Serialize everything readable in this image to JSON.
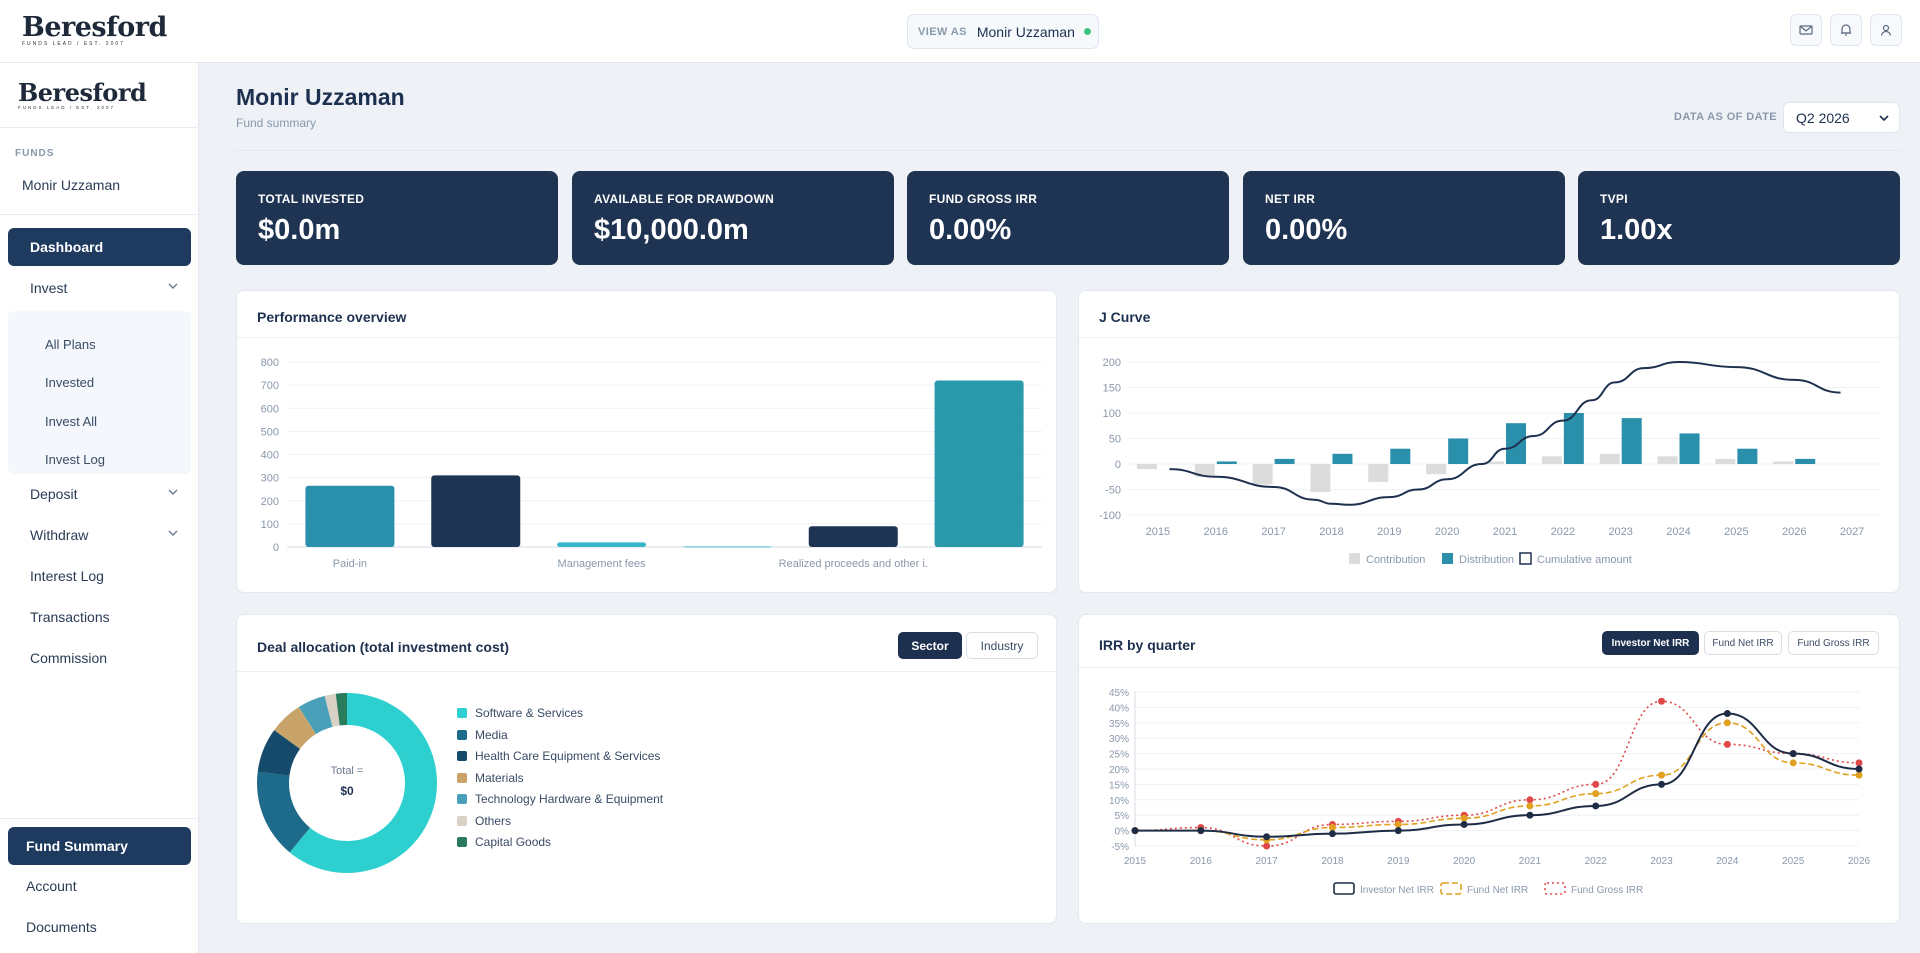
{
  "brand": {
    "name": "Beresford",
    "tagline": "FUNDS LEAD / EST. 2007"
  },
  "view_as": {
    "label": "VIEW AS",
    "value": "Monir Uzzaman"
  },
  "top_icons": [
    "mail-icon",
    "bell-icon",
    "user-icon"
  ],
  "sidebar": {
    "funds_label": "FUNDS",
    "fund_name": "Monir Uzzaman",
    "items": [
      {
        "label": "Dashboard"
      },
      {
        "label": "Invest"
      },
      {
        "label": "Deposit"
      },
      {
        "label": "Withdraw"
      },
      {
        "label": "Interest Log"
      },
      {
        "label": "Transactions"
      },
      {
        "label": "Commission"
      }
    ],
    "invest_sub": [
      {
        "label": "All Plans"
      },
      {
        "label": "Invested"
      },
      {
        "label": "Invest All"
      },
      {
        "label": "Invest Log"
      }
    ],
    "bottom": [
      {
        "label": "Fund Summary"
      },
      {
        "label": "Account"
      },
      {
        "label": "Documents"
      }
    ]
  },
  "page": {
    "title": "Monir Uzzaman",
    "subtitle": "Fund summary",
    "as_of_label": "DATA AS OF DATE",
    "as_of_value": "Q2 2026"
  },
  "kpis": [
    {
      "label": "TOTAL INVESTED",
      "value": "$0.0m"
    },
    {
      "label": "AVAILABLE FOR DRAWDOWN",
      "value": "$10,000.0m"
    },
    {
      "label": "FUND GROSS IRR",
      "value": "0.00%"
    },
    {
      "label": "NET IRR",
      "value": "0.00%"
    },
    {
      "label": "TVPI",
      "value": "1.00x"
    }
  ],
  "cards": {
    "performance": {
      "title": "Performance overview"
    },
    "jcurve": {
      "title": "J Curve"
    },
    "allocation": {
      "title": "Deal allocation (total investment cost)",
      "toggle_sector": "Sector",
      "toggle_industry": "Industry",
      "center_label": "Total =",
      "center_value": "$0"
    },
    "irr": {
      "title": "IRR by quarter",
      "toggles": [
        "Investor Net IRR",
        "Fund Net IRR",
        "Fund Gross IRR"
      ]
    }
  },
  "chart_data": [
    {
      "type": "bar",
      "title": "Performance overview",
      "categories": [
        "Paid-in",
        "",
        "Management fees",
        "",
        "Realized proceeds and other i.",
        ""
      ],
      "values": [
        265,
        310,
        20,
        5,
        90,
        720
      ],
      "colors": [
        "#2a8fab",
        "#1f3453",
        "#37b5c9",
        "#9fd8e3",
        "#1f3453",
        "#2a9aab"
      ],
      "yticks": [
        0,
        100,
        200,
        300,
        400,
        500,
        600,
        700,
        800
      ],
      "ylim": [
        0,
        800
      ]
    },
    {
      "type": "bar",
      "title": "J Curve",
      "categories": [
        "2015",
        "2016",
        "2017",
        "2018",
        "2019",
        "2020",
        "2021",
        "2022",
        "2023",
        "2024",
        "2025",
        "2026",
        "2027"
      ],
      "yticks": [
        200,
        150,
        100,
        50,
        0,
        -50,
        -100
      ],
      "ylim": [
        -100,
        200
      ],
      "series": [
        {
          "name": "Contribution",
          "values": [
            -10,
            -25,
            -40,
            -55,
            -35,
            -20,
            5,
            15,
            20,
            15,
            10,
            5,
            0
          ],
          "color": "#dcdcdc"
        },
        {
          "name": "Distribution",
          "values": [
            0,
            5,
            10,
            20,
            30,
            50,
            80,
            100,
            90,
            60,
            30,
            10,
            0
          ],
          "color": "#2a8fab"
        },
        {
          "name": "Cumulative amount",
          "x": [
            2015.2,
            2016,
            2017,
            2017.7,
            2018,
            2018.3,
            2019,
            2019.5,
            2020,
            2020.6,
            2021,
            2021.5,
            2022,
            2022.5,
            2022.9,
            2023.4,
            2024,
            2025,
            2026,
            2026.8
          ],
          "values": [
            -10,
            -25,
            -45,
            -70,
            -78,
            -80,
            -65,
            -50,
            -30,
            0,
            30,
            55,
            85,
            125,
            160,
            188,
            200,
            190,
            165,
            140
          ],
          "color": "#1e3050"
        }
      ]
    },
    {
      "type": "pie",
      "title": "Deal allocation (total investment cost)",
      "slices": [
        {
          "label": "Software & Services",
          "value": 61,
          "color": "#2ecfcf"
        },
        {
          "label": "Media",
          "value": 16,
          "color": "#1e6a8a"
        },
        {
          "label": "Health Care Equipment & Services",
          "value": 8,
          "color": "#154a6a"
        },
        {
          "label": "Materials",
          "value": 6,
          "color": "#c9a46a"
        },
        {
          "label": "Technology Hardware & Equipment",
          "value": 5,
          "color": "#4aa0b8"
        },
        {
          "label": "Others",
          "value": 2,
          "color": "#d9d2c4"
        },
        {
          "label": "Capital Goods",
          "value": 2,
          "color": "#2a7a5e"
        }
      ]
    },
    {
      "type": "line",
      "title": "IRR by quarter",
      "yticks": [
        "45%",
        "40%",
        "35%",
        "30%",
        "25%",
        "20%",
        "15%",
        "10%",
        "5%",
        "0%",
        "-5%"
      ],
      "ylim": [
        -5,
        45
      ],
      "xticks": [
        "2015",
        "2016",
        "2017",
        "2018",
        "2019",
        "2020",
        "2021",
        "2022",
        "2023",
        "2024",
        "2025",
        "2026"
      ],
      "series": [
        {
          "name": "Investor Net IRR",
          "color": "#1e2d45",
          "dash": "",
          "x": [
            2015,
            2016,
            2017,
            2018,
            2019,
            2020,
            2021,
            2022,
            2023,
            2024,
            2025,
            2026
          ],
          "values": [
            0,
            0,
            -2,
            -1,
            0,
            2,
            5,
            8,
            15,
            38,
            25,
            20
          ]
        },
        {
          "name": "Fund Net IRR",
          "color": "#e0a020",
          "dash": "6,3",
          "x": [
            2015,
            2016,
            2017,
            2018,
            2019,
            2020,
            2021,
            2022,
            2023,
            2024,
            2025,
            2026
          ],
          "values": [
            0,
            0,
            -3,
            1,
            2,
            4,
            8,
            12,
            18,
            35,
            22,
            18
          ]
        },
        {
          "name": "Fund Gross IRR",
          "color": "#e04848",
          "dash": "2,3",
          "x": [
            2015,
            2016,
            2017,
            2018,
            2019,
            2020,
            2021,
            2022,
            2023,
            2024,
            2025,
            2026
          ],
          "values": [
            0,
            1,
            -5,
            2,
            3,
            5,
            10,
            15,
            42,
            28,
            25,
            22
          ]
        }
      ]
    }
  ]
}
